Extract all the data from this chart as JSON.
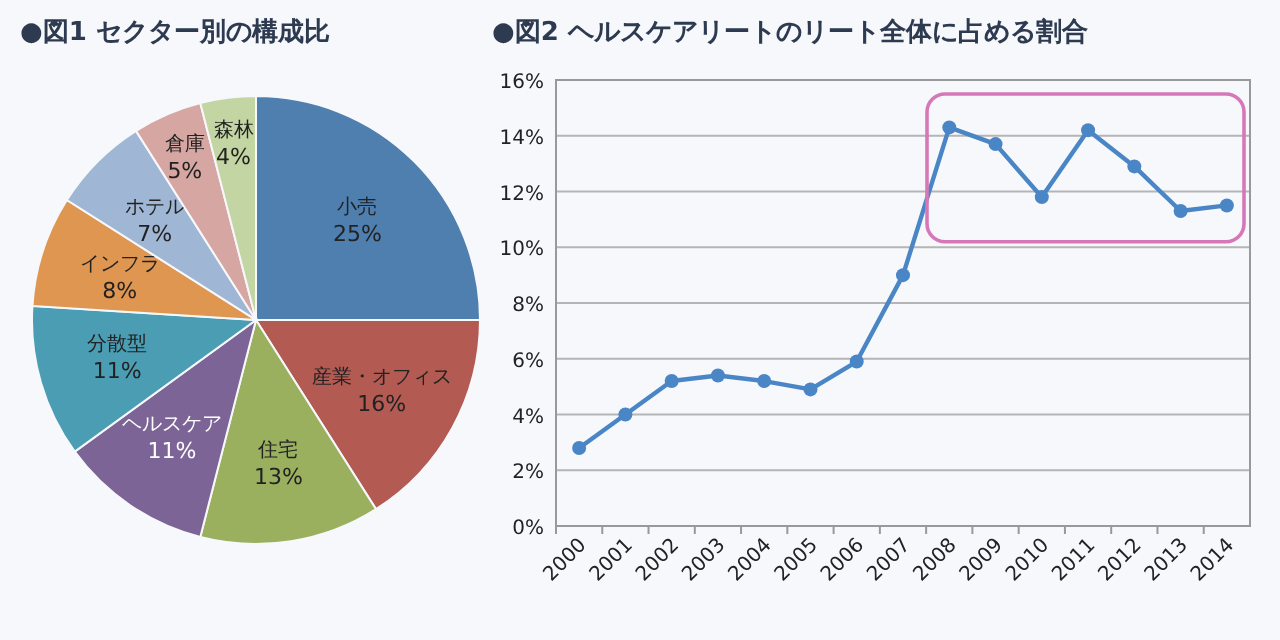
{
  "chart_data": [
    {
      "type": "pie",
      "title": "●図1 セクター別の構成比",
      "categories": [
        "小売",
        "産業・オフィス",
        "住宅",
        "ヘルスケア",
        "分散型",
        "インフラ",
        "ホテル",
        "倉庫",
        "森林"
      ],
      "values": [
        25,
        16,
        13,
        11,
        11,
        8,
        7,
        5,
        4
      ],
      "colors": [
        "#4f7fae",
        "#b35a53",
        "#9ab05e",
        "#7c6496",
        "#4b9db4",
        "#df9650",
        "#9fb7d4",
        "#d6a6a2",
        "#c3d5a2"
      ],
      "value_labels": [
        "25%",
        "16%",
        "13%",
        "11%",
        "11%",
        "8%",
        "7%",
        "5%",
        "4%"
      ]
    },
    {
      "type": "line",
      "title": "●図2 ヘルスケアリートのリート全体に占める割合",
      "categories": [
        "2000",
        "2001",
        "2002",
        "2003",
        "2004",
        "2005",
        "2006",
        "2007",
        "2008",
        "2009",
        "2010",
        "2011",
        "2012",
        "2013",
        "2014"
      ],
      "series": [
        {
          "color": "#4a86c5",
          "values": [
            2.8,
            4.0,
            5.2,
            5.4,
            5.2,
            4.9,
            5.9,
            9.0,
            14.3,
            13.7,
            11.8,
            14.2,
            12.9,
            11.3,
            11.5
          ]
        }
      ],
      "ylim": [
        0,
        16
      ],
      "yticks": [
        {
          "value": 0,
          "label": "0%"
        },
        {
          "value": 2,
          "label": "2%"
        },
        {
          "value": 4,
          "label": "4%"
        },
        {
          "value": 6,
          "label": "6%"
        },
        {
          "value": 8,
          "label": "8%"
        },
        {
          "value": 10,
          "label": "10%"
        },
        {
          "value": 12,
          "label": "12%"
        },
        {
          "value": 14,
          "label": "14%"
        },
        {
          "value": 16,
          "label": "16%"
        }
      ],
      "grid": "y",
      "marker": "circle",
      "line_style": "solid"
    }
  ]
}
